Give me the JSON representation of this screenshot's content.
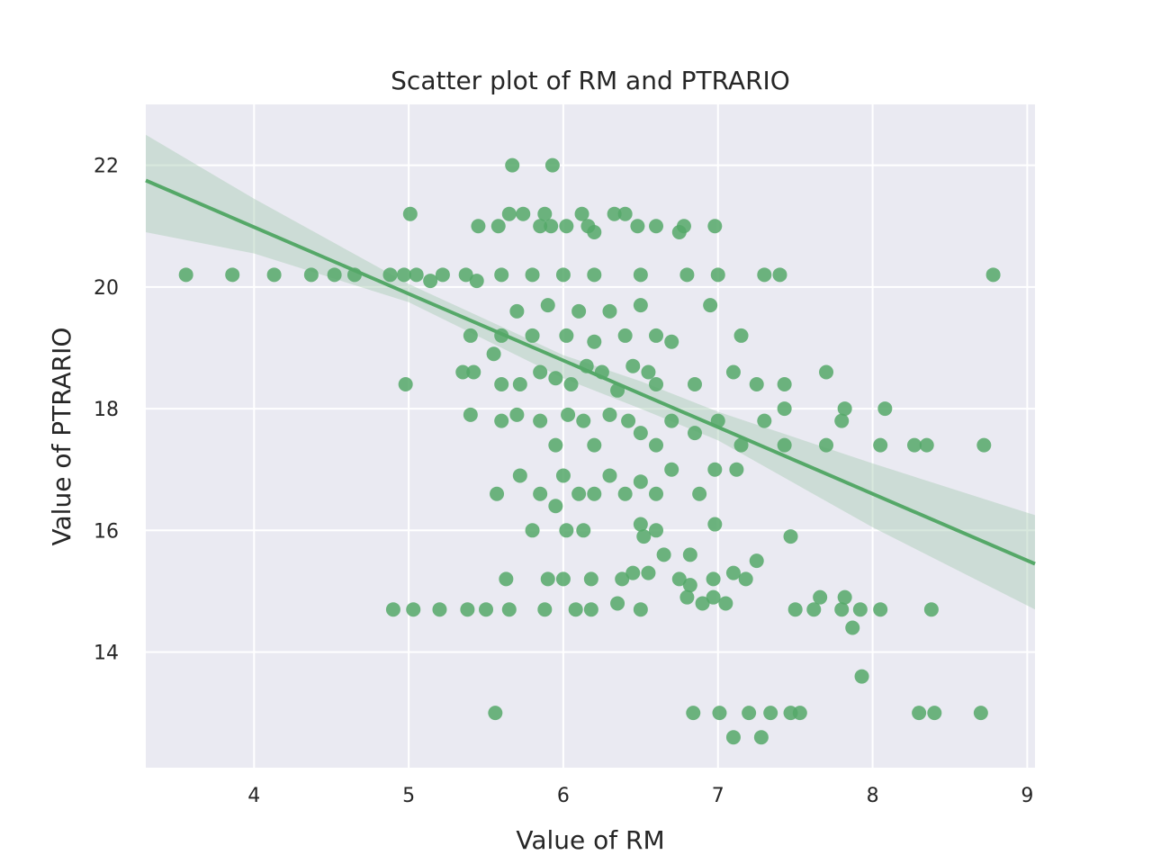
{
  "chart_data": {
    "type": "scatter",
    "title": "Scatter plot of RM and PTRARIO",
    "xlabel": "Value of RM",
    "ylabel": "Value of PTRARIO",
    "xlim": [
      3.3,
      9.05
    ],
    "ylim": [
      12.1,
      23.0
    ],
    "xticks": [
      4,
      5,
      6,
      7,
      8,
      9
    ],
    "yticks": [
      14,
      16,
      18,
      20,
      22
    ],
    "grid": true,
    "colors": {
      "points": "#55a868",
      "line": "#55a868",
      "band": "#a9ccb4",
      "background": "#eaeaf2",
      "grid": "#ffffff"
    },
    "regression": {
      "x": [
        3.3,
        9.05
      ],
      "y": [
        21.75,
        15.45
      ]
    },
    "confidence_band": {
      "x": [
        3.3,
        4.0,
        5.0,
        6.0,
        6.5,
        7.0,
        8.0,
        9.05
      ],
      "upper": [
        22.5,
        21.45,
        20.05,
        18.88,
        18.45,
        17.95,
        17.1,
        16.25
      ],
      "lower": [
        20.9,
        20.55,
        19.75,
        18.5,
        18.0,
        17.48,
        16.05,
        14.7
      ]
    },
    "series": [
      {
        "points": [
          [
            3.56,
            20.2
          ],
          [
            3.86,
            20.2
          ],
          [
            4.13,
            20.2
          ],
          [
            4.37,
            20.2
          ],
          [
            4.52,
            20.2
          ],
          [
            4.65,
            20.2
          ],
          [
            4.88,
            20.2
          ],
          [
            4.97,
            20.2
          ],
          [
            5.05,
            20.2
          ],
          [
            5.14,
            20.1
          ],
          [
            5.22,
            20.2
          ],
          [
            5.37,
            20.2
          ],
          [
            5.44,
            20.1
          ],
          [
            5.6,
            20.2
          ],
          [
            5.8,
            20.2
          ],
          [
            6.0,
            20.2
          ],
          [
            6.2,
            20.2
          ],
          [
            6.5,
            20.2
          ],
          [
            6.8,
            20.2
          ],
          [
            7.0,
            20.2
          ],
          [
            7.3,
            20.2
          ],
          [
            7.4,
            20.2
          ],
          [
            8.78,
            20.2
          ],
          [
            5.01,
            21.2
          ],
          [
            5.45,
            21.0
          ],
          [
            5.58,
            21.0
          ],
          [
            5.65,
            21.2
          ],
          [
            5.74,
            21.2
          ],
          [
            5.85,
            21.0
          ],
          [
            5.88,
            21.2
          ],
          [
            5.92,
            21.0
          ],
          [
            6.02,
            21.0
          ],
          [
            6.12,
            21.2
          ],
          [
            6.16,
            21.0
          ],
          [
            6.2,
            20.9
          ],
          [
            6.33,
            21.2
          ],
          [
            6.4,
            21.2
          ],
          [
            6.48,
            21.0
          ],
          [
            6.6,
            21.0
          ],
          [
            6.75,
            20.9
          ],
          [
            6.78,
            21.0
          ],
          [
            6.98,
            21.0
          ],
          [
            5.67,
            22.0
          ],
          [
            5.93,
            22.0
          ],
          [
            5.6,
            19.2
          ],
          [
            5.7,
            19.6
          ],
          [
            5.8,
            19.2
          ],
          [
            5.9,
            19.7
          ],
          [
            6.02,
            19.2
          ],
          [
            6.1,
            19.6
          ],
          [
            6.2,
            19.1
          ],
          [
            6.3,
            19.6
          ],
          [
            6.4,
            19.2
          ],
          [
            6.5,
            19.7
          ],
          [
            6.6,
            19.2
          ],
          [
            6.7,
            19.1
          ],
          [
            6.95,
            19.7
          ],
          [
            7.15,
            19.2
          ],
          [
            5.4,
            19.2
          ],
          [
            5.55,
            18.9
          ],
          [
            5.35,
            18.6
          ],
          [
            5.42,
            18.6
          ],
          [
            5.6,
            18.4
          ],
          [
            5.72,
            18.4
          ],
          [
            5.85,
            18.6
          ],
          [
            5.95,
            18.5
          ],
          [
            6.05,
            18.4
          ],
          [
            6.15,
            18.7
          ],
          [
            6.25,
            18.6
          ],
          [
            6.35,
            18.3
          ],
          [
            6.45,
            18.7
          ],
          [
            6.55,
            18.6
          ],
          [
            6.6,
            18.4
          ],
          [
            6.85,
            18.4
          ],
          [
            7.1,
            18.6
          ],
          [
            7.25,
            18.4
          ],
          [
            7.43,
            18.4
          ],
          [
            7.7,
            18.6
          ],
          [
            4.98,
            18.4
          ],
          [
            5.4,
            17.9
          ],
          [
            5.6,
            17.8
          ],
          [
            5.7,
            17.9
          ],
          [
            5.85,
            17.8
          ],
          [
            5.95,
            17.4
          ],
          [
            6.03,
            17.9
          ],
          [
            6.13,
            17.8
          ],
          [
            6.2,
            17.4
          ],
          [
            6.3,
            17.9
          ],
          [
            6.42,
            17.8
          ],
          [
            6.5,
            17.6
          ],
          [
            6.6,
            17.4
          ],
          [
            6.7,
            17.8
          ],
          [
            6.85,
            17.6
          ],
          [
            7.0,
            17.8
          ],
          [
            7.15,
            17.4
          ],
          [
            7.3,
            17.8
          ],
          [
            7.43,
            17.4
          ],
          [
            7.7,
            17.4
          ],
          [
            7.8,
            17.8
          ],
          [
            8.05,
            17.4
          ],
          [
            8.27,
            17.4
          ],
          [
            8.35,
            17.4
          ],
          [
            8.72,
            17.4
          ],
          [
            8.08,
            18.0
          ],
          [
            7.82,
            18.0
          ],
          [
            7.43,
            18.0
          ],
          [
            5.57,
            16.6
          ],
          [
            5.72,
            16.9
          ],
          [
            5.85,
            16.6
          ],
          [
            5.95,
            16.4
          ],
          [
            6.0,
            16.9
          ],
          [
            6.1,
            16.6
          ],
          [
            6.2,
            16.6
          ],
          [
            6.3,
            16.9
          ],
          [
            6.4,
            16.6
          ],
          [
            6.5,
            16.8
          ],
          [
            6.6,
            16.6
          ],
          [
            6.7,
            17.0
          ],
          [
            6.88,
            16.6
          ],
          [
            6.98,
            17.0
          ],
          [
            7.12,
            17.0
          ],
          [
            5.8,
            16.0
          ],
          [
            6.02,
            16.0
          ],
          [
            6.13,
            16.0
          ],
          [
            6.5,
            16.1
          ],
          [
            6.52,
            15.9
          ],
          [
            6.6,
            16.0
          ],
          [
            6.65,
            15.6
          ],
          [
            6.82,
            15.6
          ],
          [
            6.98,
            16.1
          ],
          [
            7.47,
            15.9
          ],
          [
            5.63,
            15.2
          ],
          [
            5.9,
            15.2
          ],
          [
            6.0,
            15.2
          ],
          [
            6.18,
            15.2
          ],
          [
            6.38,
            15.2
          ],
          [
            6.45,
            15.3
          ],
          [
            6.55,
            15.3
          ],
          [
            6.75,
            15.2
          ],
          [
            6.82,
            15.1
          ],
          [
            6.97,
            15.2
          ],
          [
            7.1,
            15.3
          ],
          [
            7.18,
            15.2
          ],
          [
            7.25,
            15.5
          ],
          [
            4.9,
            14.7
          ],
          [
            5.03,
            14.7
          ],
          [
            5.2,
            14.7
          ],
          [
            5.38,
            14.7
          ],
          [
            5.5,
            14.7
          ],
          [
            5.65,
            14.7
          ],
          [
            5.88,
            14.7
          ],
          [
            6.08,
            14.7
          ],
          [
            6.18,
            14.7
          ],
          [
            6.35,
            14.8
          ],
          [
            6.5,
            14.7
          ],
          [
            6.8,
            14.9
          ],
          [
            6.9,
            14.8
          ],
          [
            6.97,
            14.9
          ],
          [
            7.05,
            14.8
          ],
          [
            7.5,
            14.7
          ],
          [
            7.62,
            14.7
          ],
          [
            7.66,
            14.9
          ],
          [
            7.8,
            14.7
          ],
          [
            7.82,
            14.9
          ],
          [
            7.87,
            14.4
          ],
          [
            7.92,
            14.7
          ],
          [
            8.05,
            14.7
          ],
          [
            8.38,
            14.7
          ],
          [
            7.93,
            13.6
          ],
          [
            5.56,
            13.0
          ],
          [
            6.84,
            13.0
          ],
          [
            7.01,
            13.0
          ],
          [
            7.1,
            12.6
          ],
          [
            7.2,
            13.0
          ],
          [
            7.28,
            12.6
          ],
          [
            7.34,
            13.0
          ],
          [
            7.47,
            13.0
          ],
          [
            7.53,
            13.0
          ],
          [
            8.3,
            13.0
          ],
          [
            8.4,
            13.0
          ],
          [
            8.7,
            13.0
          ]
        ]
      }
    ]
  }
}
